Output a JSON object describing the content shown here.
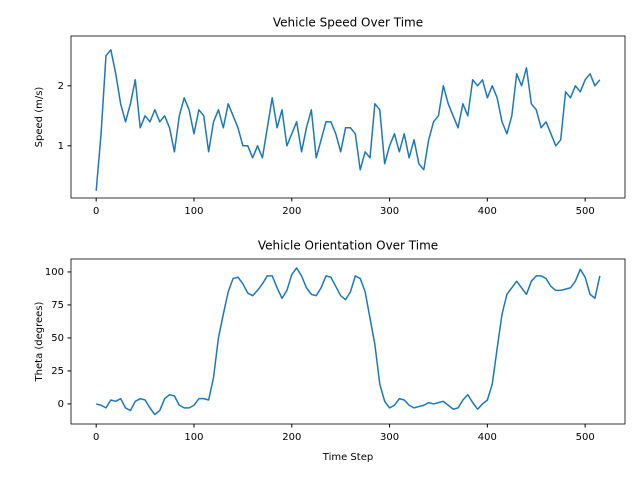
{
  "chart_data": [
    {
      "type": "line",
      "title": "Vehicle Speed Over Time",
      "ylabel": "Speed (m/s)",
      "xlim": [
        -25.75,
        540.75
      ],
      "xticks": [
        0,
        100,
        200,
        300,
        400,
        500
      ],
      "ylim": [
        0.13,
        2.83
      ],
      "yticks": [
        1,
        2
      ],
      "x": [
        0,
        5,
        10,
        15,
        20,
        25,
        30,
        35,
        40,
        45,
        50,
        55,
        60,
        65,
        70,
        75,
        80,
        85,
        90,
        95,
        100,
        105,
        110,
        115,
        120,
        125,
        130,
        135,
        140,
        145,
        150,
        155,
        160,
        165,
        170,
        175,
        180,
        185,
        190,
        195,
        200,
        205,
        210,
        215,
        220,
        225,
        230,
        235,
        240,
        245,
        250,
        255,
        260,
        265,
        270,
        275,
        280,
        285,
        290,
        295,
        300,
        305,
        310,
        315,
        320,
        325,
        330,
        335,
        340,
        345,
        350,
        355,
        360,
        365,
        370,
        375,
        380,
        385,
        390,
        395,
        400,
        405,
        410,
        415,
        420,
        425,
        430,
        435,
        440,
        445,
        450,
        455,
        460,
        465,
        470,
        475,
        480,
        485,
        490,
        495,
        500,
        505,
        510,
        515
      ],
      "series": [
        {
          "color": "#1f77b4",
          "values": [
            0.25,
            1.2,
            2.5,
            2.6,
            2.2,
            1.7,
            1.4,
            1.7,
            2.1,
            1.3,
            1.5,
            1.4,
            1.6,
            1.4,
            1.5,
            1.3,
            0.9,
            1.5,
            1.8,
            1.6,
            1.2,
            1.6,
            1.5,
            0.9,
            1.4,
            1.6,
            1.3,
            1.7,
            1.5,
            1.3,
            1.0,
            1.0,
            0.8,
            1.0,
            0.8,
            1.3,
            1.8,
            1.3,
            1.6,
            1.0,
            1.2,
            1.4,
            0.9,
            1.3,
            1.6,
            0.8,
            1.1,
            1.4,
            1.4,
            1.2,
            0.9,
            1.3,
            1.3,
            1.2,
            0.6,
            0.9,
            0.8,
            1.7,
            1.6,
            0.7,
            1.0,
            1.2,
            0.9,
            1.2,
            0.8,
            1.1,
            0.7,
            0.6,
            1.1,
            1.4,
            1.5,
            2.0,
            1.7,
            1.5,
            1.3,
            1.7,
            1.5,
            2.1,
            2.0,
            2.1,
            1.8,
            2.0,
            1.8,
            1.4,
            1.2,
            1.5,
            2.2,
            2.0,
            2.3,
            1.7,
            1.6,
            1.3,
            1.4,
            1.2,
            1.0,
            1.1,
            1.9,
            1.8,
            2.0,
            1.9,
            2.1,
            2.2,
            2.0,
            2.1
          ]
        }
      ]
    },
    {
      "type": "line",
      "title": "Vehicle Orientation Over Time",
      "ylabel": "Theta (degrees)",
      "xlabel": "Time Step",
      "xlim": [
        -25.75,
        540.75
      ],
      "xticks": [
        0,
        100,
        200,
        300,
        400,
        500
      ],
      "ylim": [
        -15.2,
        109.8
      ],
      "yticks": [
        0,
        25,
        50,
        75,
        100
      ],
      "x": [
        0,
        5,
        10,
        15,
        20,
        25,
        30,
        35,
        40,
        45,
        50,
        55,
        60,
        65,
        70,
        75,
        80,
        85,
        90,
        95,
        100,
        105,
        110,
        115,
        120,
        125,
        130,
        135,
        140,
        145,
        150,
        155,
        160,
        165,
        170,
        175,
        180,
        185,
        190,
        195,
        200,
        205,
        210,
        215,
        220,
        225,
        230,
        235,
        240,
        245,
        250,
        255,
        260,
        265,
        270,
        275,
        280,
        285,
        290,
        295,
        300,
        305,
        310,
        315,
        320,
        325,
        330,
        335,
        340,
        345,
        350,
        355,
        360,
        365,
        370,
        375,
        380,
        385,
        390,
        395,
        400,
        405,
        410,
        415,
        420,
        425,
        430,
        435,
        440,
        445,
        450,
        455,
        460,
        465,
        470,
        475,
        480,
        485,
        490,
        495,
        500,
        505,
        510,
        515
      ],
      "series": [
        {
          "color": "#1f77b4",
          "values": [
            0,
            -1,
            -3,
            3,
            2,
            4,
            -3,
            -5,
            2,
            4,
            3,
            -3,
            -8,
            -5,
            4,
            7,
            6,
            -1,
            -3,
            -3,
            -1,
            4,
            4,
            3,
            20,
            50,
            68,
            85,
            95,
            96,
            91,
            84,
            82,
            86,
            91,
            97,
            97,
            88,
            80,
            86,
            98,
            103,
            97,
            88,
            83,
            82,
            88,
            97,
            96,
            89,
            82,
            79,
            85,
            97,
            95,
            85,
            65,
            45,
            15,
            2,
            -3,
            -1,
            4,
            3,
            -1,
            -3,
            -2,
            -1,
            1,
            0,
            1,
            2,
            -1,
            -4,
            -3,
            3,
            7,
            1,
            -4,
            0,
            3,
            15,
            42,
            68,
            83,
            88,
            93,
            88,
            83,
            93,
            97,
            97,
            95,
            89,
            86,
            86,
            87,
            88,
            93,
            102,
            96,
            83,
            80,
            97
          ]
        }
      ]
    }
  ]
}
